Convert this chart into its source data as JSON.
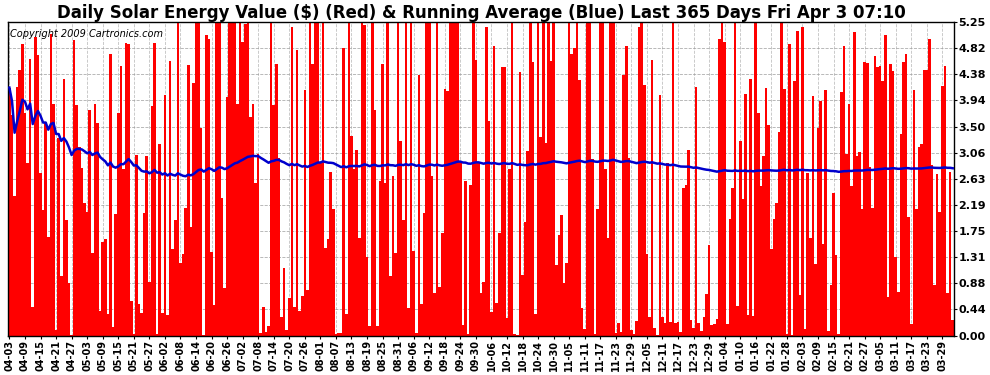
{
  "title": "Daily Solar Energy Value ($) (Red) & Running Average (Blue) Last 365 Days Fri Apr 3 07:10",
  "copyright": "Copyright 2009 Cartronics.com",
  "bar_color": "#FF0000",
  "avg_color": "#0000CC",
  "bg_color": "#FFFFFF",
  "plot_bg_color": "#FFFFFF",
  "grid_color": "#999999",
  "ylim": [
    0.0,
    5.25
  ],
  "yticks": [
    0.0,
    0.44,
    0.88,
    1.31,
    1.75,
    2.19,
    2.63,
    3.06,
    3.5,
    3.94,
    4.38,
    4.82,
    5.25
  ],
  "title_fontsize": 12,
  "copyright_fontsize": 7,
  "tick_label_fontsize": 8,
  "x_tick_dates": [
    "04-03",
    "04-09",
    "04-15",
    "04-21",
    "04-27",
    "05-03",
    "05-09",
    "05-15",
    "05-21",
    "05-27",
    "06-02",
    "06-08",
    "06-14",
    "06-20",
    "06-26",
    "07-02",
    "07-08",
    "07-14",
    "07-20",
    "07-26",
    "08-01",
    "08-07",
    "08-13",
    "08-19",
    "08-25",
    "08-31",
    "09-06",
    "09-12",
    "09-18",
    "09-24",
    "09-30",
    "10-06",
    "10-12",
    "10-18",
    "10-24",
    "10-30",
    "11-05",
    "11-11",
    "11-17",
    "11-23",
    "11-29",
    "12-05",
    "12-11",
    "12-17",
    "12-23",
    "12-29",
    "01-04",
    "01-10",
    "01-16",
    "01-22",
    "01-28",
    "02-03",
    "02-09",
    "02-15",
    "02-21",
    "02-27",
    "03-05",
    "03-11",
    "03-17",
    "03-23",
    "03-29"
  ],
  "seed": 137,
  "n_days": 365
}
